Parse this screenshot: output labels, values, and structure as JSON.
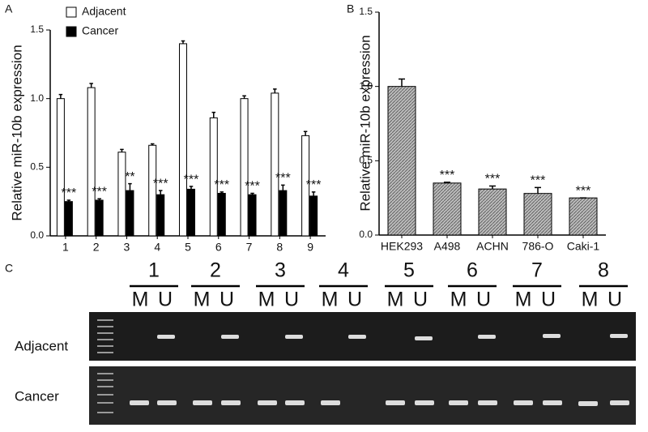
{
  "panel_labels": [
    "A",
    "B",
    "C"
  ],
  "chart_data": [
    {
      "type": "bar",
      "ylabel": "Relative miR-10b expression",
      "categories": [
        "1",
        "2",
        "3",
        "4",
        "5",
        "6",
        "7",
        "8",
        "9"
      ],
      "series": [
        {
          "name": "Adjacent",
          "color": "#ffffff",
          "values": [
            1.0,
            1.08,
            0.61,
            0.66,
            1.4,
            0.86,
            1.0,
            1.04,
            0.73
          ],
          "errors": [
            0.03,
            0.03,
            0.02,
            0.01,
            0.02,
            0.04,
            0.02,
            0.03,
            0.03
          ]
        },
        {
          "name": "Cancer",
          "color": "#000000",
          "values": [
            0.25,
            0.26,
            0.33,
            0.3,
            0.34,
            0.31,
            0.3,
            0.33,
            0.29
          ],
          "errors": [
            0.01,
            0.01,
            0.05,
            0.03,
            0.02,
            0.01,
            0.01,
            0.04,
            0.03
          ]
        }
      ],
      "annotations": [
        "***",
        "***",
        "**",
        "***",
        "***",
        "***",
        "***",
        "***",
        "***"
      ],
      "ylim": [
        0,
        1.5
      ],
      "yticks": [
        {
          "value": 0,
          "label": "0.0"
        },
        0.5,
        {
          "value": 1,
          "label": "1.0"
        },
        1.5
      ],
      "legend": "top-left"
    },
    {
      "type": "bar",
      "ylabel": "Relative miR-10b expression",
      "categories": [
        "HEK293",
        "A498",
        "ACHN",
        "786-O",
        "Caki-1"
      ],
      "series": [
        {
          "color": "#a8a8a8",
          "values": [
            1.0,
            0.35,
            0.31,
            0.28,
            0.25
          ],
          "errors": [
            0.05,
            0.005,
            0.02,
            0.04,
            0.0
          ]
        }
      ],
      "annotations": [
        null,
        "***",
        "***",
        "***",
        "***"
      ],
      "ylim": [
        0,
        1.5
      ],
      "yticks": [
        {
          "value": 0,
          "label": "0.0"
        },
        0.5,
        {
          "value": 1,
          "label": "1.0"
        },
        1.5
      ]
    }
  ],
  "gel": {
    "lanes": [
      {
        "label": "1",
        "wells": [
          "M",
          "U"
        ]
      },
      {
        "label": "2",
        "wells": [
          "M",
          "U"
        ]
      },
      {
        "label": "3",
        "wells": [
          "M",
          "U"
        ]
      },
      {
        "label": "4",
        "wells": [
          "M",
          "U"
        ]
      },
      {
        "label": "5",
        "wells": [
          "M",
          "U"
        ]
      },
      {
        "label": "6",
        "wells": [
          "M",
          "U"
        ]
      },
      {
        "label": "7",
        "wells": [
          "M",
          "U"
        ]
      },
      {
        "label": "8",
        "wells": [
          "M",
          "U"
        ]
      }
    ],
    "rows": [
      "Adjacent",
      "Cancer"
    ]
  }
}
